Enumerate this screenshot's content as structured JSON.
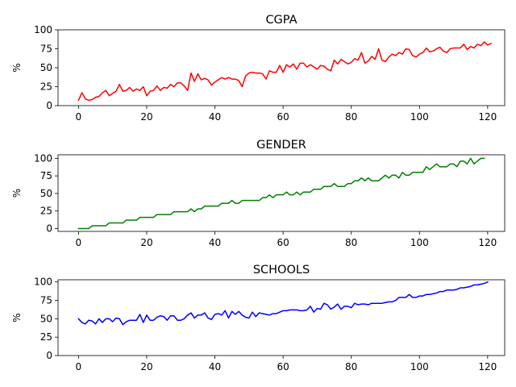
{
  "chart_data": [
    {
      "type": "line",
      "title": "CGPA",
      "ylabel": "%",
      "xlabel": "",
      "xlim": [
        -6,
        125
      ],
      "ylim": [
        0,
        100
      ],
      "xticks": [
        0,
        20,
        40,
        60,
        80,
        100,
        120
      ],
      "yticks": [
        0,
        25,
        50,
        75,
        100
      ],
      "grid": false,
      "series": [
        {
          "color": "#ff0000",
          "values": [
            7,
            17,
            9,
            7,
            8,
            11,
            12,
            17,
            20,
            13,
            16,
            19,
            28,
            19,
            20,
            24,
            19,
            22,
            20,
            25,
            13,
            19,
            20,
            26,
            20,
            24,
            23,
            28,
            25,
            30,
            30,
            26,
            20,
            43,
            32,
            42,
            34,
            36,
            34,
            27,
            31,
            34,
            37,
            35,
            37,
            35,
            35,
            33,
            25,
            39,
            43,
            44,
            43,
            43,
            42,
            35,
            46,
            44,
            44,
            53,
            44,
            54,
            51,
            55,
            48,
            56,
            56,
            51,
            54,
            51,
            48,
            53,
            52,
            48,
            46,
            60,
            55,
            61,
            58,
            55,
            57,
            62,
            60,
            70,
            56,
            59,
            65,
            61,
            75,
            60,
            58,
            64,
            68,
            66,
            70,
            68,
            75,
            74,
            66,
            64,
            68,
            70,
            76,
            71,
            72,
            75,
            77,
            72,
            70,
            75,
            76,
            76,
            76,
            81,
            74,
            78,
            76,
            81,
            79,
            84,
            80,
            82
          ]
        }
      ]
    },
    {
      "type": "line",
      "title": "GENDER",
      "ylabel": "%",
      "xlabel": "",
      "xlim": [
        -6,
        125
      ],
      "ylim": [
        -4,
        105
      ],
      "xticks": [
        0,
        20,
        40,
        60,
        80,
        100,
        120
      ],
      "yticks": [
        0,
        25,
        50,
        75,
        100
      ],
      "grid": false,
      "series": [
        {
          "color": "#008000",
          "values": [
            0,
            0,
            0,
            0,
            4,
            4,
            4,
            4,
            4,
            8,
            8,
            8,
            8,
            8,
            12,
            12,
            12,
            12,
            16,
            16,
            16,
            16,
            16,
            20,
            20,
            20,
            20,
            20,
            24,
            24,
            24,
            24,
            24,
            28,
            24,
            28,
            28,
            32,
            32,
            32,
            32,
            32,
            36,
            36,
            36,
            40,
            36,
            36,
            40,
            40,
            40,
            40,
            40,
            40,
            44,
            44,
            48,
            44,
            48,
            48,
            48,
            52,
            48,
            48,
            52,
            48,
            52,
            52,
            52,
            56,
            56,
            56,
            60,
            60,
            60,
            64,
            60,
            60,
            60,
            64,
            64,
            68,
            68,
            72,
            68,
            72,
            68,
            68,
            68,
            72,
            76,
            72,
            76,
            76,
            72,
            80,
            76,
            76,
            80,
            80,
            80,
            80,
            88,
            84,
            88,
            92,
            88,
            88,
            88,
            92,
            92,
            88,
            96,
            96,
            92,
            100,
            92,
            96,
            100,
            100
          ]
        }
      ]
    },
    {
      "type": "line",
      "title": "SCHOOLS",
      "ylabel": "%",
      "xlabel": "",
      "xlim": [
        -6,
        125
      ],
      "ylim": [
        0,
        103
      ],
      "xticks": [
        0,
        20,
        40,
        60,
        80,
        100,
        120
      ],
      "yticks": [
        0,
        25,
        50,
        75,
        100
      ],
      "grid": false,
      "series": [
        {
          "color": "#0000ff",
          "values": [
            50,
            45,
            43,
            48,
            47,
            43,
            50,
            45,
            50,
            50,
            46,
            51,
            50,
            42,
            46,
            48,
            48,
            48,
            56,
            45,
            55,
            48,
            48,
            52,
            54,
            53,
            48,
            54,
            54,
            48,
            48,
            50,
            55,
            58,
            51,
            55,
            55,
            58,
            51,
            49,
            56,
            57,
            55,
            61,
            51,
            60,
            56,
            60,
            55,
            52,
            51,
            59,
            53,
            58,
            57,
            56,
            55,
            57,
            57,
            59,
            61,
            61,
            62,
            62,
            62,
            61,
            61,
            62,
            67,
            59,
            64,
            63,
            71,
            69,
            63,
            66,
            70,
            63,
            67,
            67,
            65,
            71,
            69,
            70,
            70,
            69,
            71,
            71,
            71,
            71,
            72,
            73,
            73,
            75,
            79,
            79,
            79,
            83,
            79,
            79,
            81,
            81,
            83,
            83,
            84,
            85,
            87,
            87,
            89,
            89,
            89,
            90,
            92,
            92,
            93,
            94,
            96,
            96,
            97,
            98,
            100
          ]
        }
      ]
    }
  ]
}
